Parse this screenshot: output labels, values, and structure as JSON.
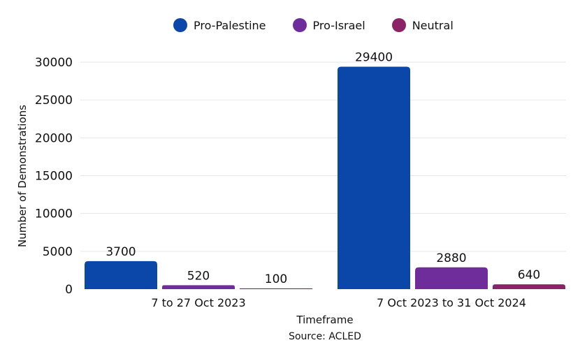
{
  "chart_data": {
    "type": "bar",
    "categories": [
      "7 to 27 Oct 2023",
      "7 Oct 2023 to 31 Oct 2024"
    ],
    "series": [
      {
        "name": "Pro-Palestine",
        "values": [
          3700,
          29400
        ],
        "color": "#0a47a9"
      },
      {
        "name": "Pro-Israel",
        "values": [
          520,
          2880
        ],
        "color": "#6f2d9c"
      },
      {
        "name": "Neutral",
        "values": [
          100,
          640
        ],
        "color": "#8a2466"
      }
    ],
    "title": "",
    "xlabel": "Timeframe",
    "ylabel": "Number of Demonstrations",
    "ylim": [
      0,
      30000
    ],
    "yticks": [
      0,
      5000,
      10000,
      15000,
      20000,
      25000,
      30000
    ],
    "legend_position": "top",
    "grid": "horizontal",
    "source": "Source: ACLED"
  }
}
